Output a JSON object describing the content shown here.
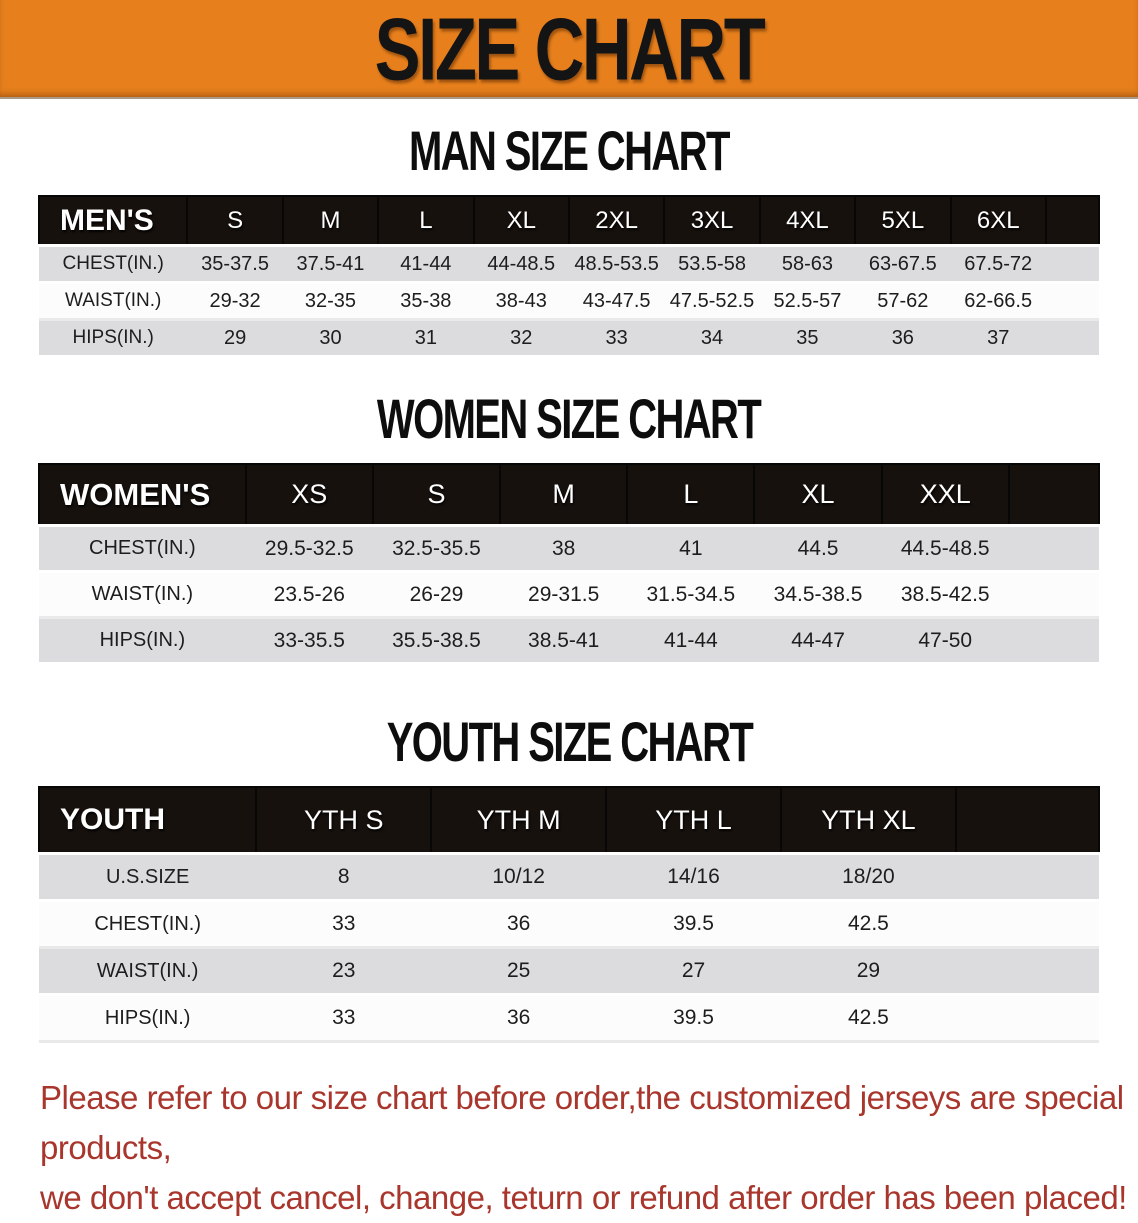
{
  "banner": {
    "title": "SIZE CHART",
    "bg_color": "#e67f1c"
  },
  "sections": [
    {
      "id": "men",
      "heading": "MAN SIZE CHART",
      "header": [
        "MEN'S",
        "S",
        "M",
        "L",
        "XL",
        "2XL",
        "3XL",
        "4XL",
        "5XL",
        "6XL"
      ],
      "rows": [
        {
          "label": "CHEST(IN.)",
          "values": [
            "35-37.5",
            "37.5-41",
            "41-44",
            "44-48.5",
            "48.5-53.5",
            "53.5-58",
            "58-63",
            "63-67.5",
            "67.5-72"
          ]
        },
        {
          "label": "WAIST(IN.)",
          "values": [
            "29-32",
            "32-35",
            "35-38",
            "38-43",
            "43-47.5",
            "47.5-52.5",
            "52.5-57",
            "57-62",
            "62-66.5"
          ]
        },
        {
          "label": "HIPS(IN.)",
          "values": [
            "29",
            "30",
            "31",
            "32",
            "33",
            "34",
            "35",
            "36",
            "37"
          ]
        }
      ]
    },
    {
      "id": "women",
      "heading": "WOMEN SIZE CHART",
      "header": [
        "WOMEN'S",
        "XS",
        "S",
        "M",
        "L",
        "XL",
        "XXL"
      ],
      "rows": [
        {
          "label": "CHEST(IN.)",
          "values": [
            "29.5-32.5",
            "32.5-35.5",
            "38",
            "41",
            "44.5",
            "44.5-48.5"
          ]
        },
        {
          "label": "WAIST(IN.)",
          "values": [
            "23.5-26",
            "26-29",
            "29-31.5",
            "31.5-34.5",
            "34.5-38.5",
            "38.5-42.5"
          ]
        },
        {
          "label": "HIPS(IN.)",
          "values": [
            "33-35.5",
            "35.5-38.5",
            "38.5-41",
            "41-44",
            "44-47",
            "47-50"
          ]
        }
      ]
    },
    {
      "id": "youth",
      "heading": "YOUTH SIZE CHART",
      "header": [
        "YOUTH",
        "YTH S",
        "YTH M",
        "YTH L",
        "YTH XL"
      ],
      "rows": [
        {
          "label": "U.S.SIZE",
          "values": [
            "8",
            "10/12",
            "14/16",
            "18/20"
          ]
        },
        {
          "label": "CHEST(IN.)",
          "values": [
            "33",
            "36",
            "39.5",
            "42.5"
          ]
        },
        {
          "label": "WAIST(IN.)",
          "values": [
            "23",
            "25",
            "27",
            "29"
          ]
        },
        {
          "label": "HIPS(IN.)",
          "values": [
            "33",
            "36",
            "39.5",
            "42.5"
          ]
        }
      ]
    }
  ],
  "disclaimer": {
    "color": "#a9362c",
    "line1": "Please refer to our size chart before order,the customized jerseys are special products,",
    "line2": "we don't accept cancel, change, teturn or refund after order has been placed!"
  }
}
